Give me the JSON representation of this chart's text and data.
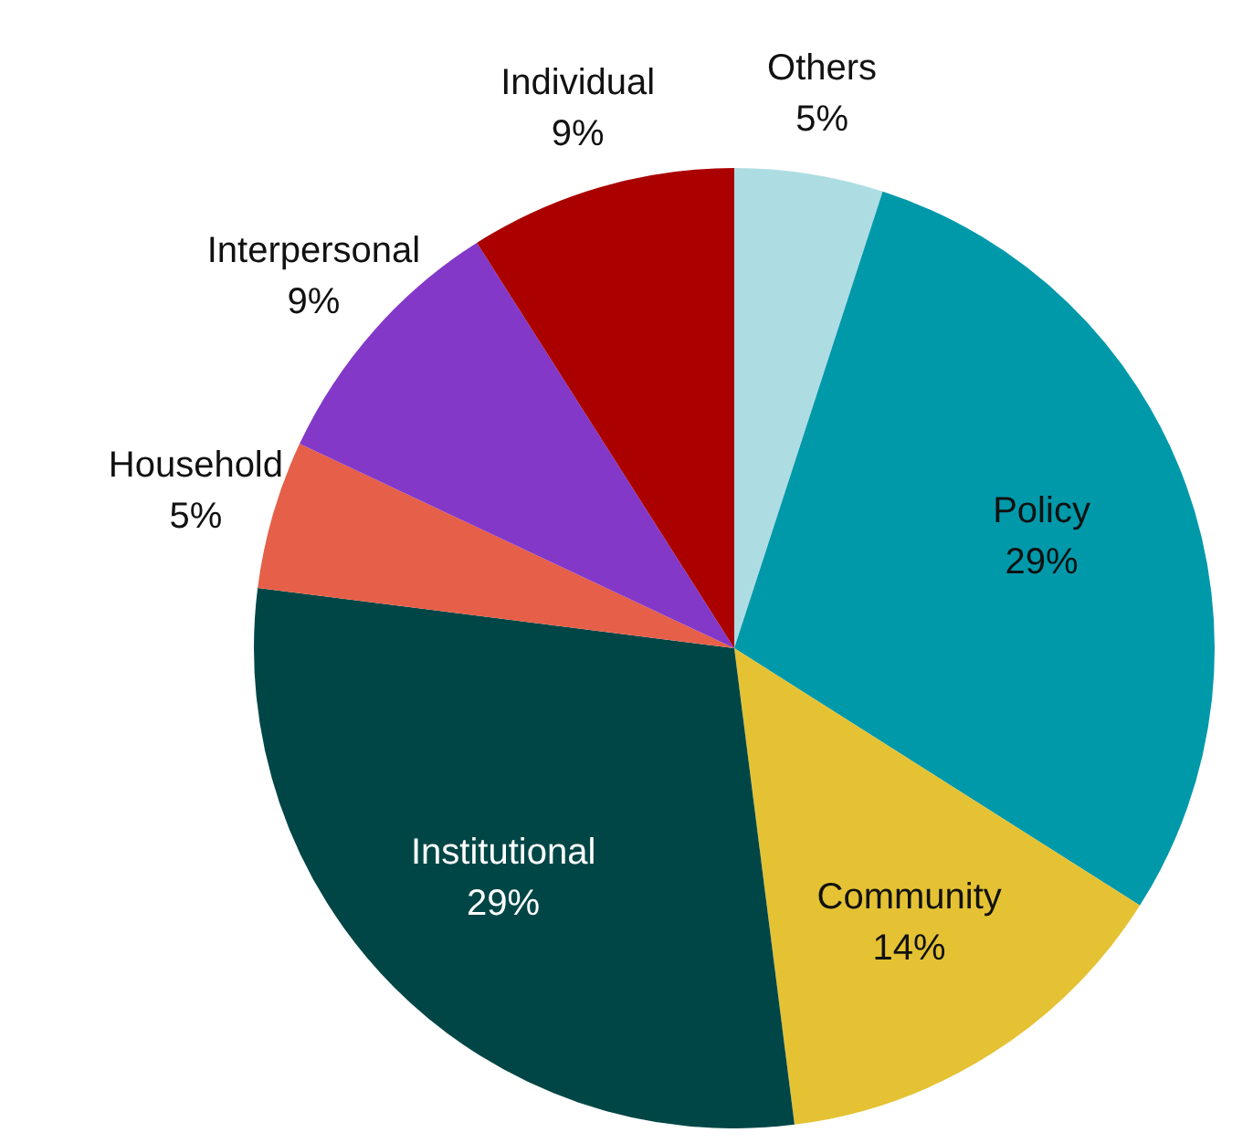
{
  "chart_data": {
    "type": "pie",
    "categories": [
      "Others",
      "Policy",
      "Community",
      "Institutional",
      "Household",
      "Interpersonal",
      "Individual"
    ],
    "values": [
      5,
      29,
      14,
      29,
      5,
      9,
      9
    ],
    "value_labels": [
      "5%",
      "29%",
      "14%",
      "29%",
      "5%",
      "9%",
      "9%"
    ],
    "colors": [
      "#addde3",
      "#0099aa",
      "#e4c233",
      "#004646",
      "#e65f48",
      "#8338c8",
      "#aa0000"
    ],
    "legend": false
  }
}
